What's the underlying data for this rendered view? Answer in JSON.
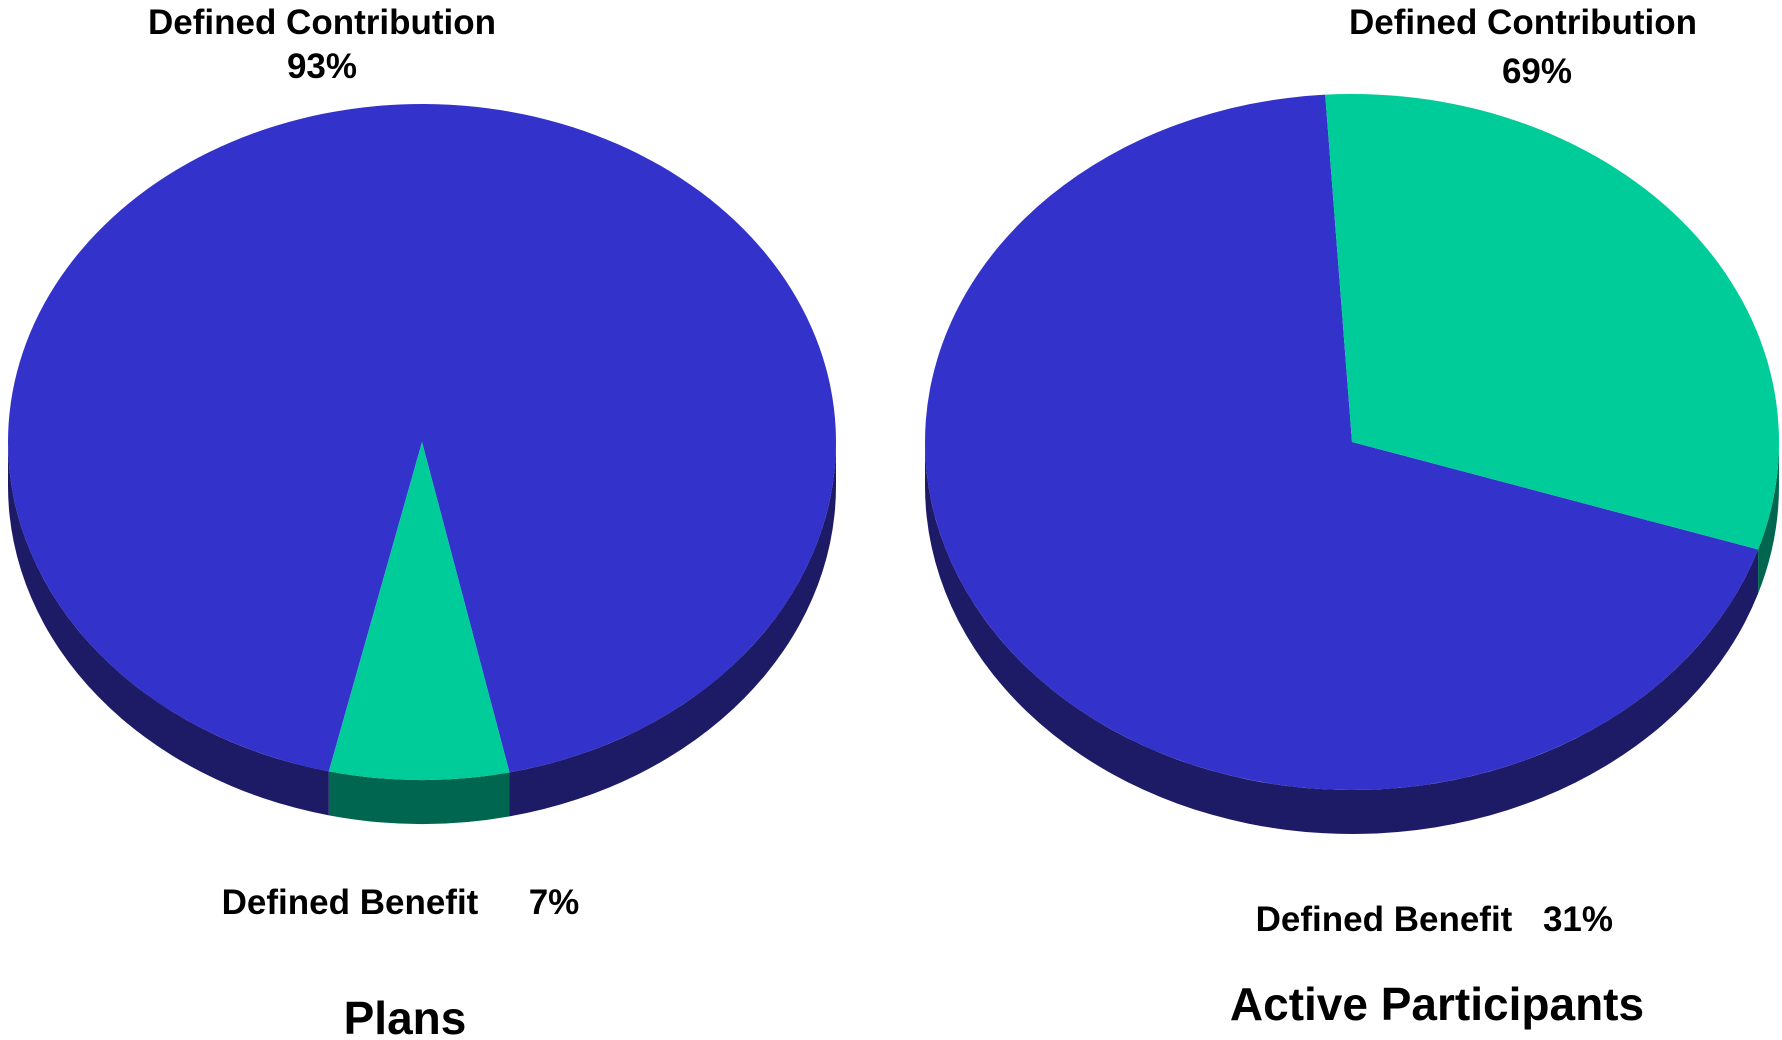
{
  "chart_data": [
    {
      "type": "pie",
      "title": "Plans",
      "slices": [
        {
          "label": "Defined Contribution",
          "value": 93,
          "value_label": "93%",
          "color": "#3333CC",
          "side_color": "#1E1B66"
        },
        {
          "label": "Defined Benefit",
          "value": 7,
          "value_label": "7%",
          "color": "#00CC99",
          "side_color": "#006650"
        }
      ]
    },
    {
      "type": "pie",
      "title": "Active Participants",
      "slices": [
        {
          "label": "Defined Contribution",
          "value": 69,
          "value_label": "69%",
          "color": "#3333CC",
          "side_color": "#1E1B66"
        },
        {
          "label": "Defined Benefit",
          "value": 31,
          "value_label": "31%",
          "color": "#00CC99",
          "side_color": "#006650"
        }
      ]
    }
  ]
}
